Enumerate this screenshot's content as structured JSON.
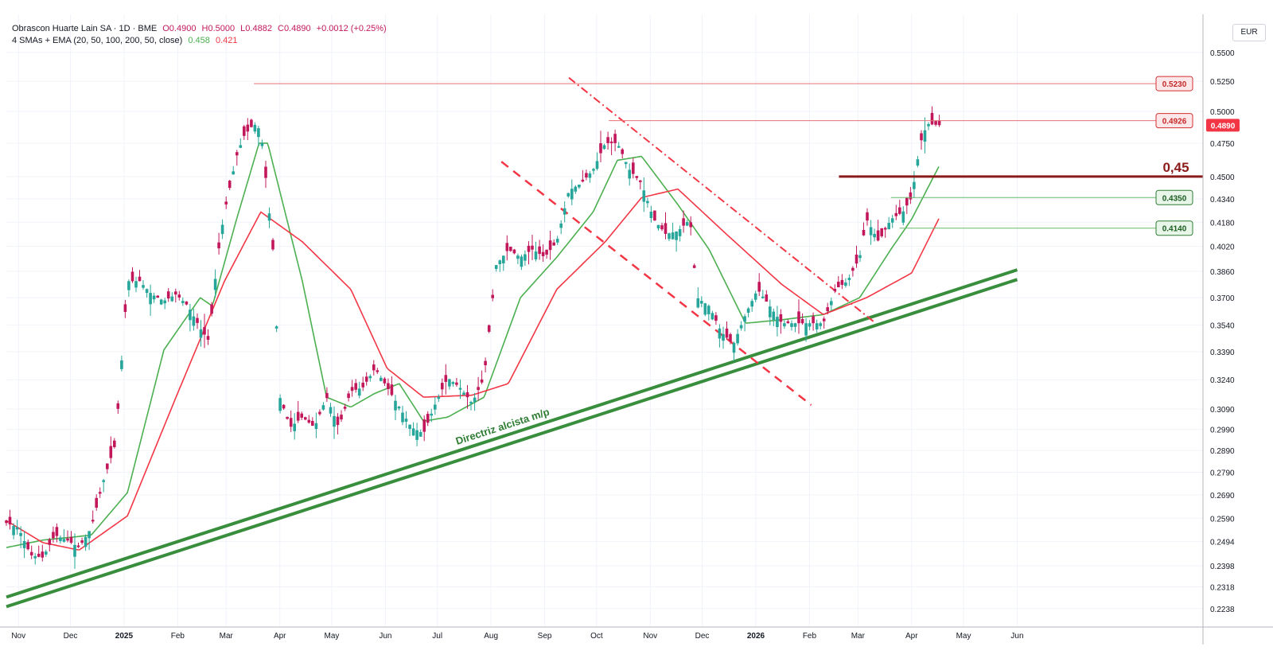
{
  "legend": {
    "symbol_line": "Obrascon Huarte Lain SA · 1D · BME",
    "ohlc": {
      "o": "O0.4900",
      "h": "H0.5000",
      "l": "L0.4882",
      "c": "C0.4890",
      "chg": "+0.0012 (+0.25%)"
    },
    "ma_label": "4 SMAs + EMA (20, 50, 100, 200, 50, close)",
    "ma_value_1": "0.458",
    "ma_value_2": "0.421"
  },
  "currency": "EUR",
  "colors": {
    "up": "#26a69a",
    "down": "#c2185b",
    "grid": "#f0f3fa",
    "ma_fast": "#4caf50",
    "ma_slow": "#f23645",
    "trend": "#388e3c",
    "resistance": "#8b1a1a",
    "price_label": "#f23645"
  },
  "chart_data": {
    "type": "candlestick",
    "title": "Obrascon Huarte Lain SA · 1D · BME",
    "currency": "EUR",
    "x_tick_labels": [
      "Nov",
      "Dec",
      "2025",
      "Feb",
      "Mar",
      "Apr",
      "May",
      "Jun",
      "Jul",
      "Aug",
      "Sep",
      "Oct",
      "Nov",
      "Dec",
      "2026",
      "Feb",
      "Mar",
      "Apr",
      "May",
      "Jun"
    ],
    "y_tick_labels": [
      "0.5500",
      "0.5250",
      "0.5000",
      "0.4750",
      "0.4500",
      "0.4340",
      "0.4180",
      "0.4020",
      "0.3860",
      "0.3700",
      "0.3540",
      "0.3390",
      "0.3240",
      "0.3090",
      "0.2990",
      "0.2890",
      "0.2790",
      "0.2690",
      "0.2590",
      "0.2494",
      "0.2398",
      "0.2318",
      "0.2238"
    ],
    "y_ticks": [
      0.55,
      0.525,
      0.5,
      0.475,
      0.45,
      0.434,
      0.418,
      0.402,
      0.386,
      0.37,
      0.354,
      0.339,
      0.324,
      0.309,
      0.299,
      0.289,
      0.279,
      0.269,
      0.259,
      0.2494,
      0.2398,
      0.2318,
      0.2238
    ],
    "y_scale": "log",
    "ylim": [
      0.2175,
      0.585
    ],
    "last_ohlc": {
      "open": 0.49,
      "high": 0.5,
      "low": 0.4882,
      "close": 0.489,
      "change": 0.0012,
      "change_pct": 0.25
    },
    "price_path": [
      [
        "2024-10-25",
        0.257
      ],
      [
        "2024-11-01",
        0.255
      ],
      [
        "2024-11-08",
        0.244
      ],
      [
        "2024-11-15",
        0.243
      ],
      [
        "2024-11-22",
        0.252
      ],
      [
        "2024-11-29",
        0.25
      ],
      [
        "2024-12-06",
        0.247
      ],
      [
        "2024-12-13",
        0.255
      ],
      [
        "2024-12-20",
        0.275
      ],
      [
        "2024-12-27",
        0.292
      ],
      [
        "2025-01-03",
        0.38
      ],
      [
        "2025-01-10",
        0.38
      ],
      [
        "2025-01-17",
        0.372
      ],
      [
        "2025-01-24",
        0.368
      ],
      [
        "2025-01-31",
        0.372
      ],
      [
        "2025-02-07",
        0.365
      ],
      [
        "2025-02-14",
        0.352
      ],
      [
        "2025-02-19",
        0.345
      ],
      [
        "2025-02-24",
        0.395
      ],
      [
        "2025-02-28",
        0.425
      ],
      [
        "2025-03-07",
        0.465
      ],
      [
        "2025-03-11",
        0.48
      ],
      [
        "2025-03-17",
        0.49
      ],
      [
        "2025-03-21",
        0.485
      ],
      [
        "2025-03-25",
        0.435
      ],
      [
        "2025-03-28",
        0.4
      ],
      [
        "2025-04-01",
        0.315
      ],
      [
        "2025-04-07",
        0.3
      ],
      [
        "2025-04-14",
        0.305
      ],
      [
        "2025-04-21",
        0.3
      ],
      [
        "2025-04-28",
        0.315
      ],
      [
        "2025-05-05",
        0.3
      ],
      [
        "2025-05-12",
        0.318
      ],
      [
        "2025-05-19",
        0.32
      ],
      [
        "2025-05-26",
        0.33
      ],
      [
        "2025-06-02",
        0.32
      ],
      [
        "2025-06-09",
        0.31
      ],
      [
        "2025-06-16",
        0.3
      ],
      [
        "2025-06-23",
        0.297
      ],
      [
        "2025-06-30",
        0.312
      ],
      [
        "2025-07-07",
        0.325
      ],
      [
        "2025-07-14",
        0.32
      ],
      [
        "2025-07-21",
        0.312
      ],
      [
        "2025-07-28",
        0.325
      ],
      [
        "2025-08-04",
        0.39
      ],
      [
        "2025-08-11",
        0.4
      ],
      [
        "2025-08-18",
        0.395
      ],
      [
        "2025-08-25",
        0.4
      ],
      [
        "2025-09-01",
        0.395
      ],
      [
        "2025-09-08",
        0.405
      ],
      [
        "2025-09-15",
        0.44
      ],
      [
        "2025-09-22",
        0.445
      ],
      [
        "2025-09-29",
        0.455
      ],
      [
        "2025-10-06",
        0.475
      ],
      [
        "2025-10-13",
        0.475
      ],
      [
        "2025-10-20",
        0.455
      ],
      [
        "2025-10-27",
        0.445
      ],
      [
        "2025-11-03",
        0.42
      ],
      [
        "2025-11-10",
        0.41
      ],
      [
        "2025-11-17",
        0.412
      ],
      [
        "2025-11-24",
        0.42
      ],
      [
        "2025-11-28",
        0.37
      ],
      [
        "2025-12-05",
        0.365
      ],
      [
        "2025-12-12",
        0.35
      ],
      [
        "2025-12-19",
        0.343
      ],
      [
        "2025-12-26",
        0.36
      ],
      [
        "2026-01-02",
        0.375
      ],
      [
        "2026-01-09",
        0.365
      ],
      [
        "2026-01-16",
        0.355
      ],
      [
        "2026-01-23",
        0.355
      ],
      [
        "2026-02-02",
        0.355
      ],
      [
        "2026-02-09",
        0.355
      ],
      [
        "2026-02-16",
        0.375
      ],
      [
        "2026-02-23",
        0.38
      ],
      [
        "2026-03-02",
        0.395
      ],
      [
        "2026-03-06",
        0.42
      ],
      [
        "2026-03-13",
        0.405
      ],
      [
        "2026-03-20",
        0.42
      ],
      [
        "2026-03-27",
        0.425
      ],
      [
        "2026-04-01",
        0.435
      ],
      [
        "2026-04-06",
        0.475
      ],
      [
        "2026-04-10",
        0.49
      ],
      [
        "2026-04-17",
        0.489
      ]
    ],
    "series": [
      {
        "name": "20",
        "color": "#4caf50",
        "last_value": 0.458,
        "points": [
          [
            "2024-10-25",
            0.247
          ],
          [
            "2024-11-15",
            0.25
          ],
          [
            "2024-12-13",
            0.252
          ],
          [
            "2025-01-03",
            0.27
          ],
          [
            "2025-01-24",
            0.34
          ],
          [
            "2025-02-14",
            0.37
          ],
          [
            "2025-02-21",
            0.365
          ],
          [
            "2025-03-07",
            0.42
          ],
          [
            "2025-03-20",
            0.475
          ],
          [
            "2025-03-25",
            0.475
          ],
          [
            "2025-04-14",
            0.38
          ],
          [
            "2025-04-28",
            0.315
          ],
          [
            "2025-05-12",
            0.31
          ],
          [
            "2025-05-26",
            0.317
          ],
          [
            "2025-06-09",
            0.322
          ],
          [
            "2025-06-23",
            0.303
          ],
          [
            "2025-07-07",
            0.305
          ],
          [
            "2025-07-28",
            0.315
          ],
          [
            "2025-08-18",
            0.37
          ],
          [
            "2025-09-08",
            0.395
          ],
          [
            "2025-09-29",
            0.425
          ],
          [
            "2025-10-13",
            0.462
          ],
          [
            "2025-10-27",
            0.465
          ],
          [
            "2025-11-17",
            0.43
          ],
          [
            "2025-12-05",
            0.4
          ],
          [
            "2025-12-26",
            0.355
          ],
          [
            "2026-01-16",
            0.357
          ],
          [
            "2026-02-09",
            0.36
          ],
          [
            "2026-03-02",
            0.37
          ],
          [
            "2026-03-20",
            0.4
          ],
          [
            "2026-04-01",
            0.42
          ],
          [
            "2026-04-17",
            0.458
          ]
        ]
      },
      {
        "name": "50",
        "color": "#f23645",
        "last_value": 0.421,
        "points": [
          [
            "2024-10-25",
            0.258
          ],
          [
            "2024-11-15",
            0.249
          ],
          [
            "2024-12-06",
            0.246
          ],
          [
            "2025-01-03",
            0.26
          ],
          [
            "2025-01-31",
            0.315
          ],
          [
            "2025-02-28",
            0.38
          ],
          [
            "2025-03-21",
            0.425
          ],
          [
            "2025-04-14",
            0.405
          ],
          [
            "2025-05-12",
            0.375
          ],
          [
            "2025-06-02",
            0.33
          ],
          [
            "2025-06-23",
            0.315
          ],
          [
            "2025-07-21",
            0.316
          ],
          [
            "2025-08-11",
            0.322
          ],
          [
            "2025-09-08",
            0.375
          ],
          [
            "2025-10-06",
            0.405
          ],
          [
            "2025-10-27",
            0.435
          ],
          [
            "2025-11-17",
            0.441
          ],
          [
            "2025-12-15",
            0.41
          ],
          [
            "2026-01-16",
            0.378
          ],
          [
            "2026-02-09",
            0.36
          ],
          [
            "2026-03-06",
            0.37
          ],
          [
            "2026-04-01",
            0.385
          ],
          [
            "2026-04-17",
            0.421
          ]
        ]
      }
    ],
    "annotations": {
      "horizontal_levels": [
        {
          "value": 0.523,
          "label": "0.5230",
          "from": "2025-03-17"
        },
        {
          "value": 0.4926,
          "label": "0.4926",
          "from": "2025-10-08"
        },
        {
          "value": 0.435,
          "label": "0.4350",
          "from": "2026-03-20"
        },
        {
          "value": 0.414,
          "label": "0.4140",
          "from": "2026-03-25"
        }
      ],
      "resistance": {
        "value": 0.45,
        "label": "0,45",
        "from": "2026-02-18"
      },
      "last_price_label": "0.4890",
      "trendline_label": "Directriz alcista m/p",
      "uptrend_channel": [
        {
          "start": [
            "2024-10-25",
            0.2245
          ],
          "end": [
            "2026-06-01",
            0.381
          ]
        },
        {
          "start": [
            "2024-10-25",
            0.228
          ],
          "end": [
            "2026-06-01",
            0.387
          ]
        }
      ],
      "downtrend_dashdot": {
        "start": [
          "2025-09-15",
          0.528
        ],
        "end": [
          "2026-03-10",
          0.356
        ]
      },
      "downtrend_dashed": {
        "start": [
          "2025-08-07",
          0.461
        ],
        "end": [
          "2026-02-02",
          0.311
        ]
      }
    }
  }
}
